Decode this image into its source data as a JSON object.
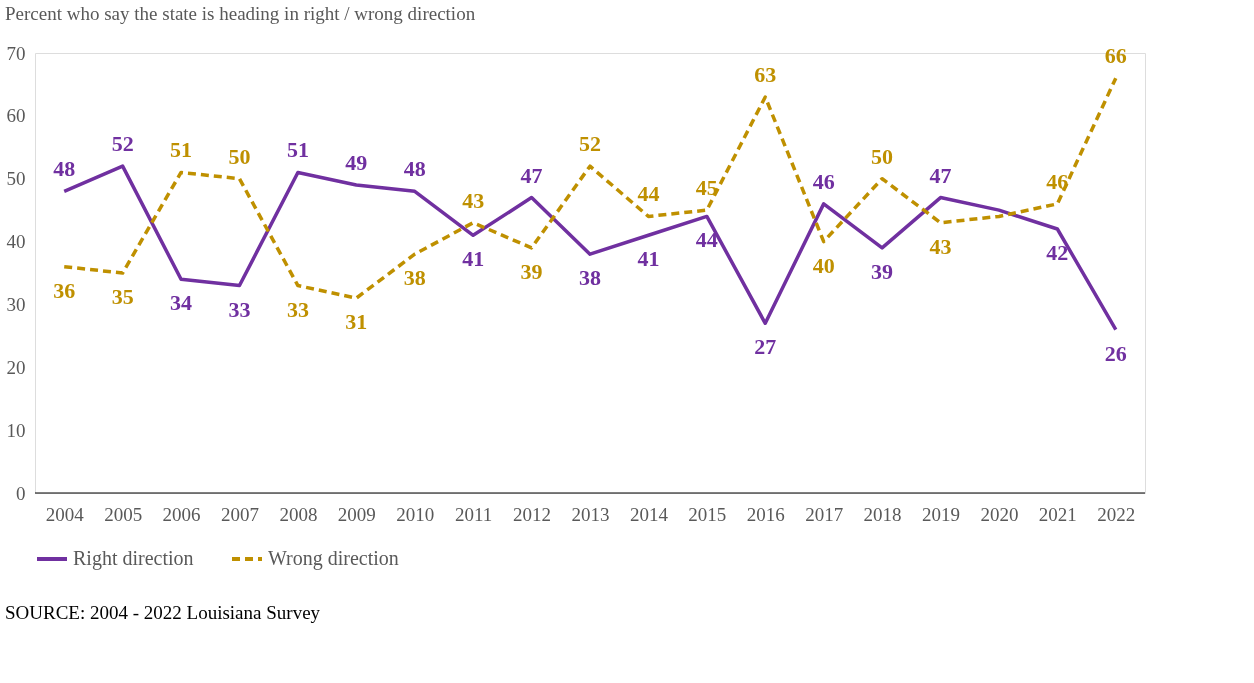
{
  "chart_data": {
    "type": "line",
    "title": "Percent who say the state is heading in right / wrong direction",
    "categories": [
      "2004",
      "2005",
      "2006",
      "2007",
      "2008",
      "2009",
      "2010",
      "2011",
      "2012",
      "2013",
      "2014",
      "2015",
      "2016",
      "2017",
      "2018",
      "2019",
      "2020",
      "2021",
      "2022"
    ],
    "series": [
      {
        "name": "Right direction",
        "color": "#7030a0",
        "line_style": "solid",
        "values": [
          48,
          52,
          34,
          33,
          51,
          49,
          48,
          41,
          47,
          38,
          41,
          44,
          27,
          46,
          39,
          47,
          45,
          42,
          26
        ],
        "value_labels": [
          "48",
          "52",
          "34",
          "33",
          "51",
          "49",
          "48",
          "41",
          "47",
          "38",
          "41",
          "44",
          "27",
          "46",
          "39",
          "47",
          null,
          "42",
          "26"
        ]
      },
      {
        "name": "Wrong direction",
        "color": "#bf9000",
        "line_style": "dashed",
        "values": [
          36,
          35,
          51,
          50,
          33,
          31,
          38,
          43,
          39,
          52,
          44,
          45,
          63,
          40,
          50,
          43,
          44,
          46,
          66
        ],
        "value_labels": [
          "36",
          "35",
          "51",
          "50",
          "33",
          "31",
          "38",
          "43",
          "39",
          "52",
          "44",
          "45",
          "63",
          "40",
          "50",
          "43",
          null,
          "46",
          "66"
        ]
      }
    ],
    "ylim": [
      0,
      70
    ],
    "yticks": [
      0,
      10,
      20,
      30,
      40,
      50,
      60,
      70
    ],
    "grid": false,
    "legend": "bottom",
    "marker": "none",
    "annotations": [
      "SOURCE: 2004 - 2022 Louisiana Survey"
    ]
  }
}
